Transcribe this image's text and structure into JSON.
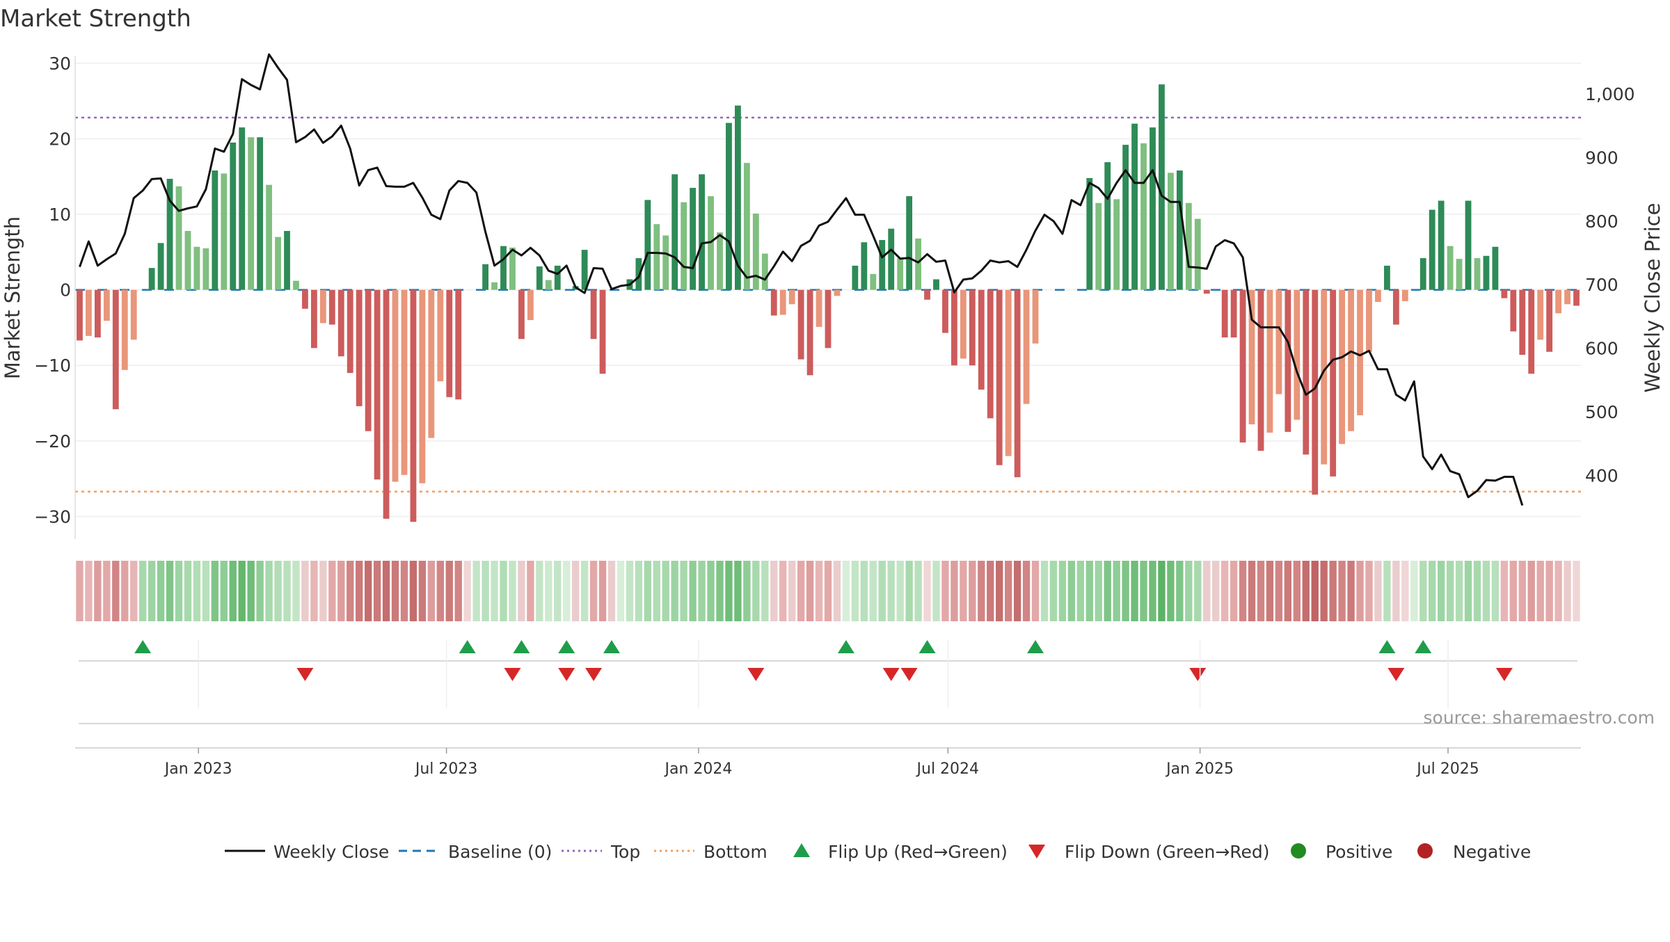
{
  "chart_data": {
    "type": "bar+line",
    "title": "Market Strength",
    "ylabel_left": "Market Strength",
    "ylabel_right": "Weekly Close Price",
    "ylim_left": [
      -33,
      31
    ],
    "yticks_left": [
      30,
      20,
      10,
      0,
      -10,
      -20,
      -30
    ],
    "yticks_left_labels": [
      "30",
      "20",
      "10",
      "0",
      "−10",
      "−20",
      "−30"
    ],
    "ylim_right": [
      300,
      1060
    ],
    "yticks_right": [
      1000,
      900,
      800,
      700,
      600,
      500,
      400
    ],
    "yticks_right_labels": [
      "1,000",
      "900",
      "800",
      "700",
      "600",
      "500",
      "400"
    ],
    "x_date_start": "2022-10-03",
    "x_date_end": "2025-10-06",
    "x_ticks": [
      "2023-01-01",
      "2023-07-01",
      "2024-01-01",
      "2024-07-01",
      "2025-01-01",
      "2025-07-01"
    ],
    "x_tick_labels": [
      "Jan 2023",
      "Jul 2023",
      "Jan 2024",
      "Jul 2024",
      "Jan 2025",
      "Jul 2025"
    ],
    "top_level": 22.8,
    "bottom_level": -26.7,
    "strength": [
      -6.7,
      -6.1,
      -6.3,
      -4.1,
      -15.8,
      -10.6,
      -6.6,
      0,
      2.9,
      6.2,
      14.7,
      13.7,
      7.8,
      5.7,
      5.5,
      15.8,
      15.4,
      19.5,
      21.5,
      20.2,
      20.2,
      13.9,
      7.0,
      7.8,
      1.2,
      -2.5,
      -7.7,
      -4.4,
      -4.6,
      -8.8,
      -11.0,
      -15.4,
      -18.7,
      -25.1,
      -30.3,
      -25.4,
      -24.5,
      -30.7,
      -25.6,
      -19.6,
      -12.1,
      -14.2,
      -14.5,
      0,
      0,
      3.4,
      1.0,
      5.8,
      5.6,
      -6.5,
      -4.0,
      3.1,
      1.3,
      3.2,
      0,
      0.5,
      5.3,
      -6.5,
      -11.1,
      0,
      0,
      1.4,
      4.2,
      11.9,
      8.7,
      7.2,
      15.3,
      11.6,
      13.5,
      15.3,
      12.4,
      7.6,
      22.1,
      24.4,
      16.8,
      10.1,
      4.8,
      -3.4,
      -3.3,
      -1.9,
      -9.2,
      -11.3,
      -4.9,
      -7.7,
      -0.8,
      0,
      3.2,
      6.3,
      2.1,
      6.6,
      8.1,
      4.2,
      12.4,
      6.8,
      -1.3,
      1.4,
      -5.7,
      -10.0,
      -9.1,
      -10.0,
      -13.2,
      -17.0,
      -23.2,
      -22.0,
      -24.8,
      -15.1,
      -7.1,
      0,
      0,
      0,
      0,
      0,
      14.8,
      11.5,
      16.9,
      12.0,
      19.2,
      22.0,
      19.4,
      21.5,
      27.2,
      15.5,
      15.8,
      11.5,
      9.4,
      -0.5,
      0,
      -6.3,
      -6.3,
      -20.2,
      -17.8,
      -21.3,
      -18.9,
      -13.8,
      -18.8,
      -17.2,
      -21.8,
      -27.1,
      -23.1,
      -24.7,
      -20.4,
      -18.7,
      -16.6,
      -8.2,
      -1.6,
      3.2,
      -4.6,
      -1.5,
      0,
      4.2,
      10.6,
      11.8,
      5.8,
      4.1,
      11.8,
      4.2,
      4.5,
      5.7,
      -1.1,
      -5.5,
      -8.6,
      -11.1,
      -6.6,
      -8.2,
      -3.1,
      -1.9,
      -2.1
    ],
    "weekly_close": [
      728,
      768,
      730,
      740,
      749,
      780,
      836,
      848,
      866,
      867,
      832,
      816,
      820,
      823,
      850,
      914,
      909,
      937,
      1023,
      1014,
      1007,
      1062,
      1041,
      1022,
      924,
      932,
      944,
      923,
      933,
      950,
      914,
      856,
      880,
      884,
      855,
      854,
      854,
      860,
      837,
      810,
      803,
      848,
      863,
      860,
      845,
      783,
      730,
      740,
      755,
      746,
      758,
      746,
      722,
      717,
      730,
      696,
      687,
      726,
      725,
      693,
      698,
      700,
      712,
      750,
      750,
      749,
      743,
      728,
      726,
      765,
      767,
      778,
      768,
      730,
      711,
      714,
      708,
      729,
      752,
      737,
      761,
      769,
      793,
      799,
      818,
      836,
      810,
      810,
      777,
      743,
      755,
      741,
      742,
      735,
      748,
      736,
      738,
      688,
      708,
      710,
      722,
      738,
      735,
      737,
      728,
      755,
      785,
      810,
      800,
      780,
      833,
      825,
      860,
      852,
      835,
      860,
      880,
      860,
      860,
      880,
      840,
      830,
      830,
      728,
      727,
      725,
      760,
      770,
      765,
      743,
      645,
      633,
      633,
      633,
      610,
      563,
      527,
      537,
      565,
      582,
      586,
      595,
      589,
      596,
      567,
      567,
      527,
      518,
      548,
      430,
      410,
      433,
      407,
      402,
      366,
      376,
      393,
      392,
      398,
      398,
      353
    ],
    "band_colors": [
      "#e3a8a8",
      "#e7b5b5",
      "#dd9d9d",
      "#e3a8a8",
      "#d18585",
      "#e0a3a3",
      "#e7b5b5",
      "#a7d9ac",
      "#9dd4a3",
      "#8fcd96",
      "#7fc587",
      "#9dd4a3",
      "#a7d9ac",
      "#b1ddb5",
      "#b8e0bc",
      "#7fc587",
      "#8fcd96",
      "#6fbd78",
      "#64b76d",
      "#6fbd78",
      "#8fcd96",
      "#a7d9ac",
      "#b1ddb5",
      "#b8e0bc",
      "#c3e5c6",
      "#eacccc",
      "#e7b5b5",
      "#eacccc",
      "#e3a8a8",
      "#dd9d9d",
      "#d18585",
      "#cb7a7a",
      "#c46e6e",
      "#cb7a7a",
      "#c46e6e",
      "#cb7a7a",
      "#d18585",
      "#c46e6e",
      "#cb7a7a",
      "#dd9d9d",
      "#d18585",
      "#cb7a7a",
      "#d18585",
      "#f0d6d6",
      "#c3e5c6",
      "#b8e0bc",
      "#c3e5c6",
      "#b1ddb5",
      "#c3e5c6",
      "#eacccc",
      "#e3a8a8",
      "#c3e5c6",
      "#cdeacf",
      "#c3e5c6",
      "#d7eed9",
      "#eacccc",
      "#c3e5c6",
      "#e3a8a8",
      "#dd9d9d",
      "#eacccc",
      "#d7eed9",
      "#c3e5c6",
      "#b8e0bc",
      "#a7d9ac",
      "#b1ddb5",
      "#a7d9ac",
      "#9dd4a3",
      "#a7d9ac",
      "#8fcd96",
      "#9dd4a3",
      "#8fcd96",
      "#7fc587",
      "#6fbd78",
      "#6fbd78",
      "#8fcd96",
      "#a7d9ac",
      "#b8e0bc",
      "#eacccc",
      "#e7b5b5",
      "#eacccc",
      "#e3a8a8",
      "#dd9d9d",
      "#e7b5b5",
      "#e3a8a8",
      "#eacccc",
      "#d7eed9",
      "#c3e5c6",
      "#b8e0bc",
      "#c3e5c6",
      "#b1ddb5",
      "#b8e0bc",
      "#c3e5c6",
      "#a7d9ac",
      "#b8e0bc",
      "#f0d6d6",
      "#c3e5c6",
      "#e3a8a8",
      "#dd9d9d",
      "#e3a8a8",
      "#dd9d9d",
      "#d18585",
      "#cb7a7a",
      "#c46e6e",
      "#d18585",
      "#c46e6e",
      "#d18585",
      "#e3a8a8",
      "#b8e0bc",
      "#a7d9ac",
      "#9dd4a3",
      "#8fcd96",
      "#9dd4a3",
      "#8fcd96",
      "#9dd4a3",
      "#7fc587",
      "#8fcd96",
      "#7fc587",
      "#6fbd78",
      "#7fc587",
      "#6fbd78",
      "#5cb366",
      "#6fbd78",
      "#7fc587",
      "#9dd4a3",
      "#a7d9ac",
      "#eacccc",
      "#eacccc",
      "#e7b5b5",
      "#e3a8a8",
      "#d18585",
      "#cb7a7a",
      "#d18585",
      "#cb7a7a",
      "#d18585",
      "#cb7a7a",
      "#d18585",
      "#c46e6e",
      "#bf6464",
      "#c46e6e",
      "#cb7a7a",
      "#d18585",
      "#cb7a7a",
      "#dd9d9d",
      "#e3a8a8",
      "#eacccc",
      "#b8e0bc",
      "#eacccc",
      "#f0d6d6",
      "#d7eed9",
      "#b1ddb5",
      "#a7d9ac",
      "#9dd4a3",
      "#a7d9ac",
      "#b1ddb5",
      "#9dd4a3",
      "#a7d9ac",
      "#b1ddb5",
      "#b8e0bc",
      "#e7b5b5",
      "#e3a8a8",
      "#e3a8a8",
      "#dd9d9d",
      "#e3a8a8",
      "#e3a8a8",
      "#e7b5b5",
      "#eacccc",
      "#f0d6d6"
    ],
    "flip_up_weeks": [
      7,
      43,
      49,
      54,
      59,
      85,
      94,
      106,
      145,
      149
    ],
    "flip_down_weeks": [
      25,
      48,
      54,
      57,
      75,
      90,
      92,
      124,
      146,
      158
    ],
    "legend": {
      "weekly_close": "Weekly Close",
      "baseline": "Baseline (0)",
      "top": "Top",
      "bottom": "Bottom",
      "flip_up": "Flip Up (Red→Green)",
      "flip_down": "Flip Down (Green→Red)",
      "positive": "Positive",
      "negative": "Negative"
    },
    "colors": {
      "pos_strong": "#2e8b57",
      "pos_weak": "#7fbf7f",
      "neg_strong": "#cd5c5c",
      "neg_weak": "#e9967a",
      "line": "#111111",
      "baseline": "#1f77b4",
      "top": "#9467bd",
      "bottom": "#f0a060",
      "flip_up": "#1f9d4a",
      "flip_down": "#d62728",
      "positive": "#228b22",
      "negative": "#b22222"
    },
    "source_note": "source: sharemaestro.com"
  }
}
